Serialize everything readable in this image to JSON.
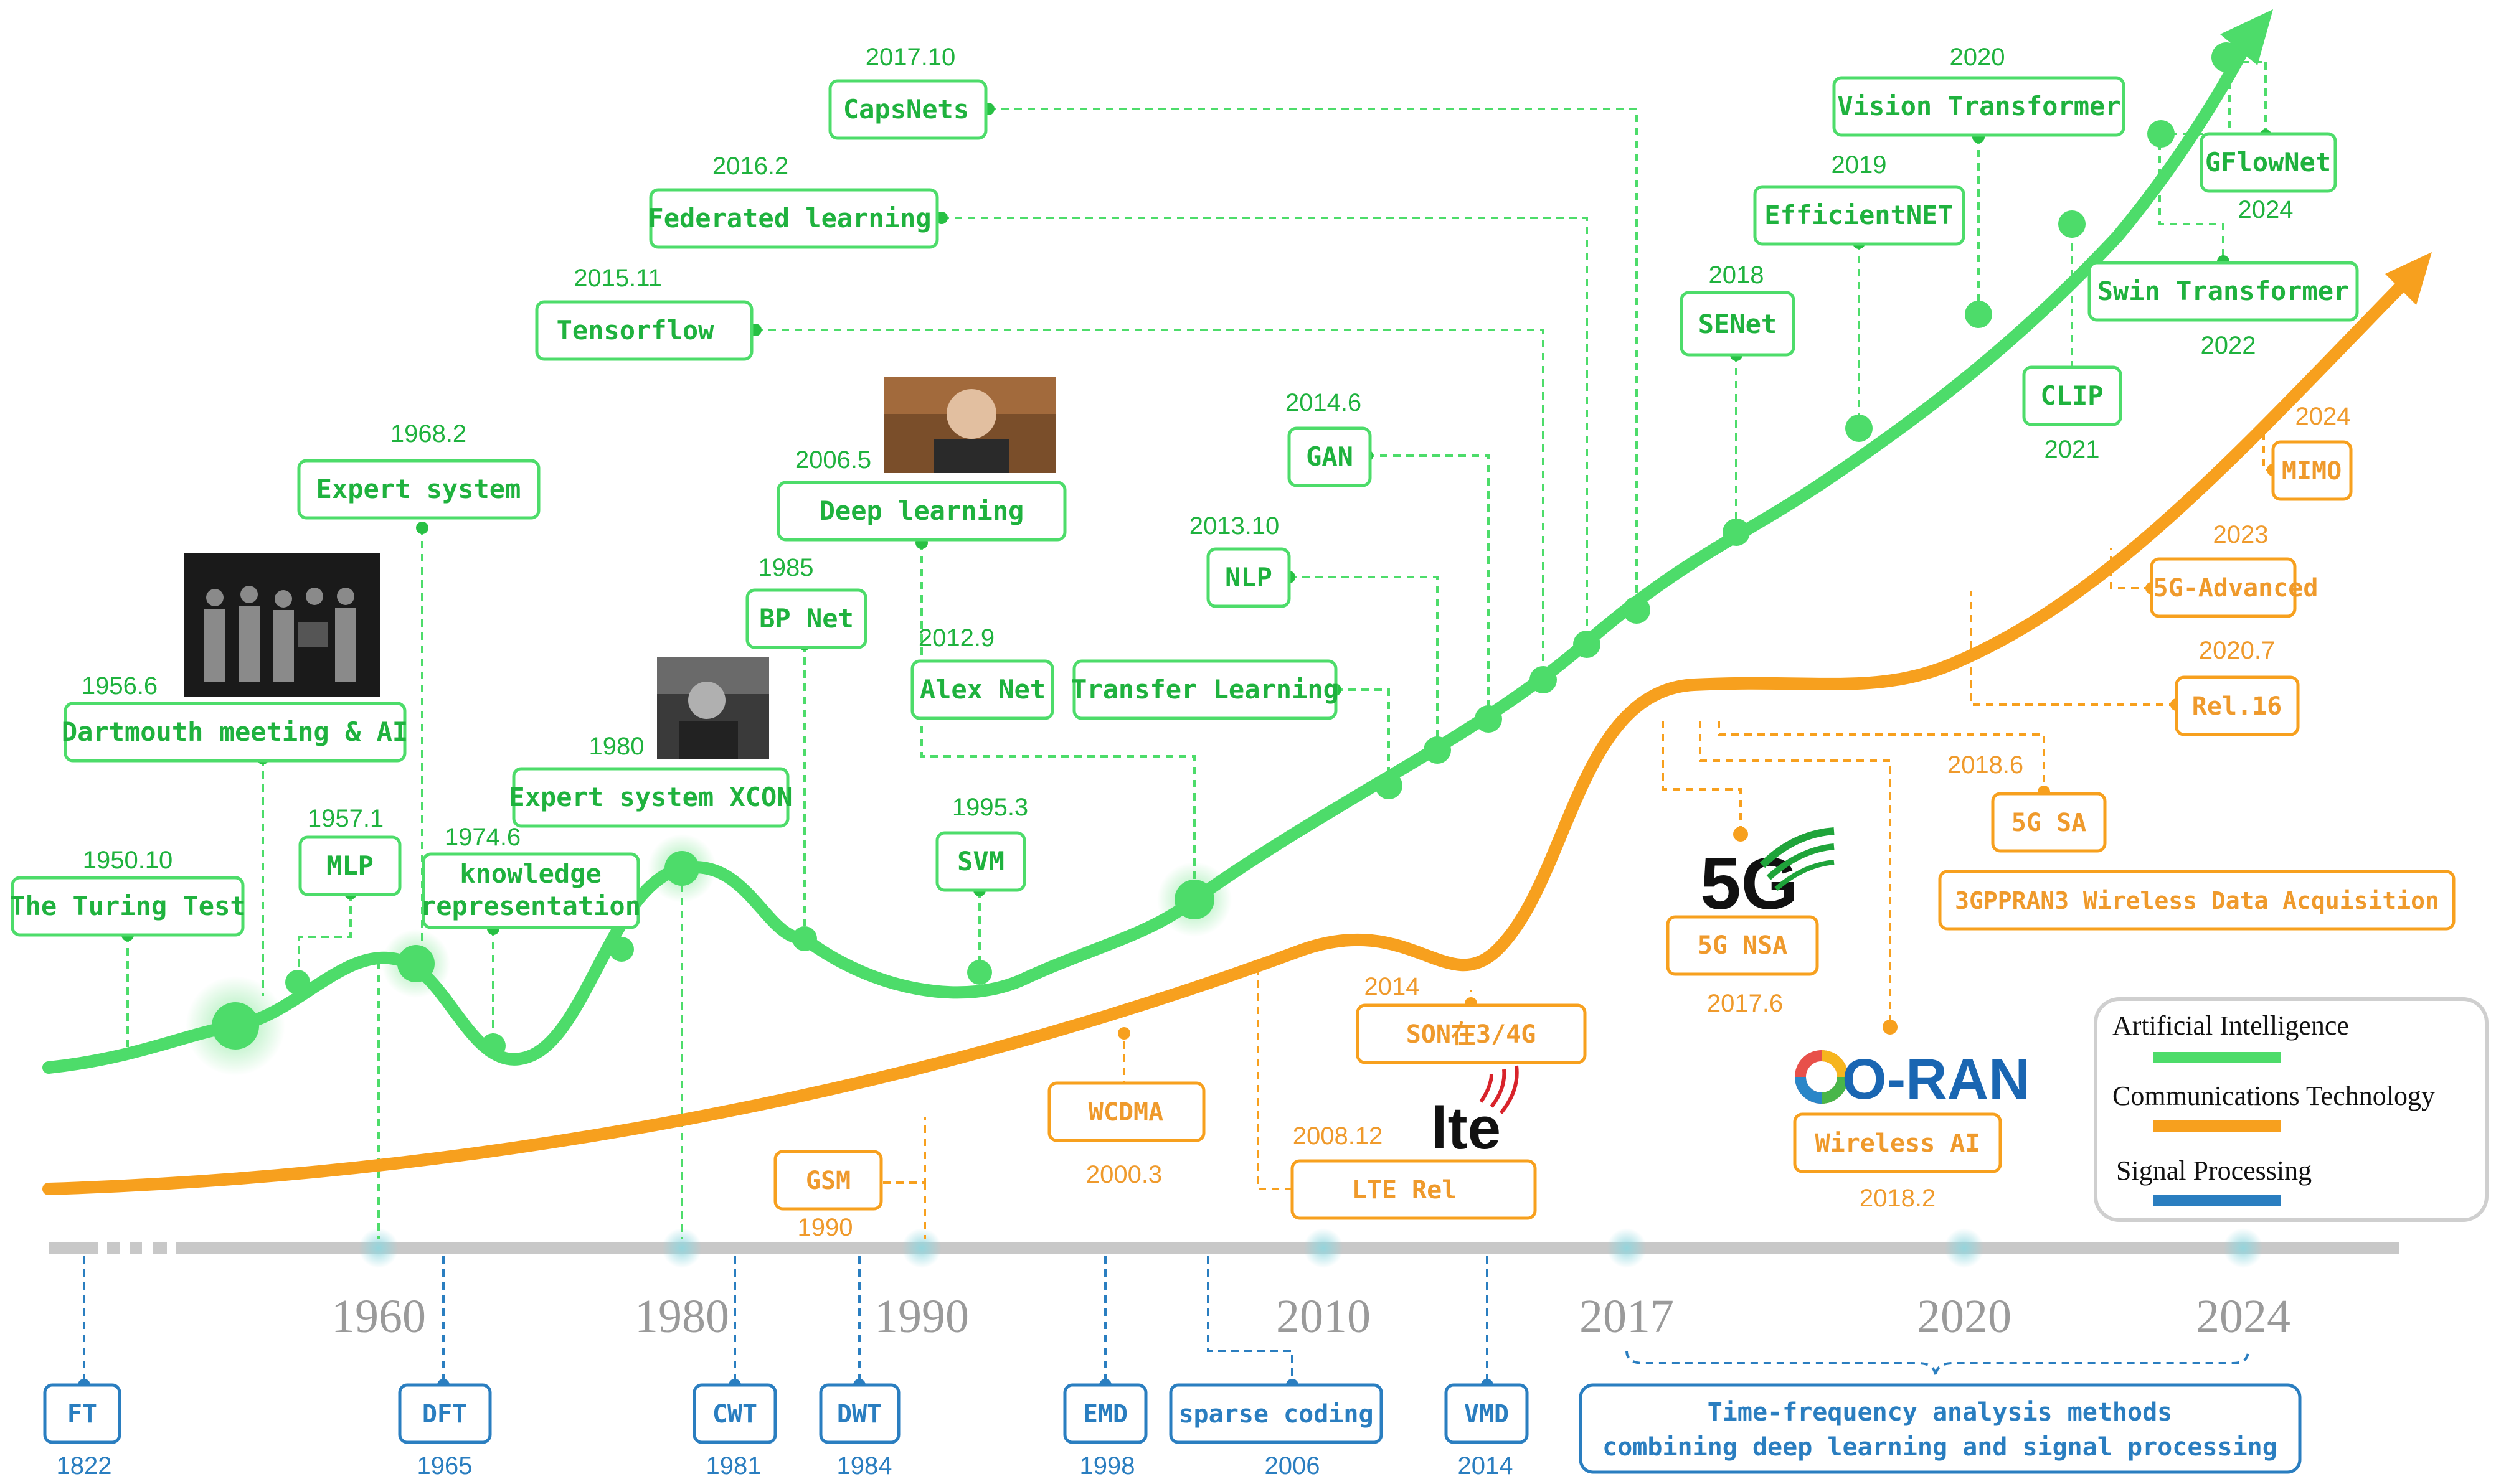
{
  "colors": {
    "ai": "#4ddc6a",
    "ai_text": "#1fb23e",
    "comm": "#f7a01e",
    "comm_text": "#ef9a2c",
    "signal": "#2a7ec0",
    "axis": "#c8c8c8",
    "axis_label": "#9a9a9a"
  },
  "axis_years": [
    "1960",
    "1980",
    "1990",
    "2010",
    "2017",
    "2020",
    "2024"
  ],
  "ai_events": [
    {
      "id": "turing",
      "label": "The Turing Test",
      "date": "1950.10"
    },
    {
      "id": "dartmouth",
      "label": "Dartmouth meeting & AI",
      "date": "1956.6"
    },
    {
      "id": "mlp",
      "label": "MLP",
      "date": "1957.1"
    },
    {
      "id": "expert",
      "label": "Expert system",
      "date": "1968.2"
    },
    {
      "id": "knowledge",
      "label": "knowledge representation",
      "date": "1974.6"
    },
    {
      "id": "xcon",
      "label": "Expert system XCON",
      "date": "1980"
    },
    {
      "id": "bpnet",
      "label": "BP Net",
      "date": "1985"
    },
    {
      "id": "svm",
      "label": "SVM",
      "date": "1995.3"
    },
    {
      "id": "deep",
      "label": "Deep learning",
      "date": "2006.5"
    },
    {
      "id": "alexnet",
      "label": "Alex Net",
      "date": "2012.9"
    },
    {
      "id": "transfer",
      "label": "Transfer Learning",
      "date": ""
    },
    {
      "id": "tensorflow",
      "label": "Tensorflow",
      "date": "2015.11"
    },
    {
      "id": "federated",
      "label": "Federated learning",
      "date": "2016.2"
    },
    {
      "id": "capsnets",
      "label": "CapsNets",
      "date": "2017.10"
    },
    {
      "id": "nlp",
      "label": "NLP",
      "date": "2013.10"
    },
    {
      "id": "gan",
      "label": "GAN",
      "date": "2014.6"
    },
    {
      "id": "senet",
      "label": "SENet",
      "date": "2018"
    },
    {
      "id": "efficientnet",
      "label": "EfficientNET",
      "date": "2019"
    },
    {
      "id": "vit",
      "label": "Vision Transformer",
      "date": "2020"
    },
    {
      "id": "clip",
      "label": "CLIP",
      "date": "2021"
    },
    {
      "id": "gflownet",
      "label": "GFlowNet",
      "date": "2024"
    },
    {
      "id": "swin",
      "label": "Swin Transformer",
      "date": "2022"
    }
  ],
  "comm_events": [
    {
      "id": "gsm",
      "label": "GSM",
      "date": "1990"
    },
    {
      "id": "wcdma",
      "label": "WCDMA",
      "date": "2000.3"
    },
    {
      "id": "lte",
      "label": "LTE Rel",
      "date": "2008.12"
    },
    {
      "id": "son",
      "label": "SON在3/4G",
      "date": "2014"
    },
    {
      "id": "nsa",
      "label": "5G NSA",
      "date": "2017.6"
    },
    {
      "id": "wirelessai",
      "label": "Wireless AI",
      "date": "2018.2"
    },
    {
      "id": "sa",
      "label": "5G SA",
      "date": "2018.6"
    },
    {
      "id": "rel16",
      "label": "Rel.16",
      "date": "2020.7"
    },
    {
      "id": "adv",
      "label": "5G-Advanced",
      "date": "2023"
    },
    {
      "id": "mimo",
      "label": "MIMO",
      "date": "2024"
    },
    {
      "id": "ran3",
      "label": "3GPPRAN3 Wireless Data Acquisition",
      "date": ""
    }
  ],
  "signal_events": [
    {
      "id": "ft",
      "label": "FT",
      "date": "1822"
    },
    {
      "id": "dft",
      "label": "DFT",
      "date": "1965"
    },
    {
      "id": "cwt",
      "label": "CWT",
      "date": "1981"
    },
    {
      "id": "dwt",
      "label": "DWT",
      "date": "1984"
    },
    {
      "id": "emd",
      "label": "EMD",
      "date": "1998"
    },
    {
      "id": "sparse",
      "label": "sparse coding",
      "date": "2006"
    },
    {
      "id": "vmd",
      "label": "VMD",
      "date": "2014"
    },
    {
      "id": "tf",
      "label": "Time-frequency analysis methods",
      "label2": "combining deep learning and signal processing",
      "date": ""
    }
  ],
  "logos": {
    "fiveg": "5G",
    "lte": "lte",
    "oran": "O-RAN"
  },
  "legend": {
    "ai": "Artificial Intelligence",
    "comm": "Communications Technology",
    "signal": "Signal Processing"
  }
}
